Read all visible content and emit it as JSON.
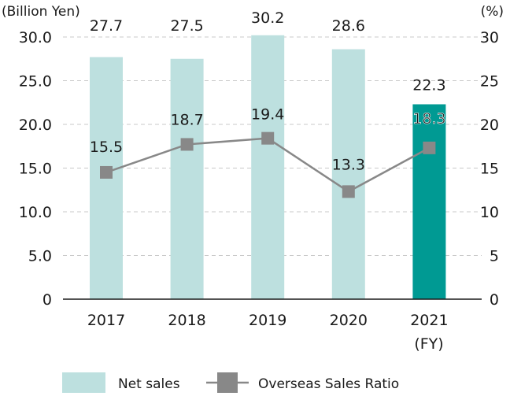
{
  "chart_data": {
    "type": "bar",
    "title": "",
    "categories": [
      "2017",
      "2018",
      "2019",
      "2020",
      "2021"
    ],
    "x_unit_label": "(FY)",
    "left_axis": {
      "label": "(Billion Yen)",
      "range": [
        0,
        30
      ],
      "ticks": [
        "0",
        "5.0",
        "10.0",
        "15.0",
        "20.0",
        "25.0",
        "30.0"
      ]
    },
    "right_axis": {
      "label": "(%)",
      "range": [
        0,
        30
      ],
      "ticks": [
        "0",
        "5",
        "10",
        "15",
        "20",
        "25",
        "30"
      ]
    },
    "grid": "horizontal dashed",
    "series": [
      {
        "name": "Net sales",
        "type": "bar",
        "axis": "left",
        "values": [
          27.7,
          27.5,
          30.2,
          28.6,
          22.3
        ],
        "labels": [
          "27.7",
          "27.5",
          "30.2",
          "28.6",
          "22.3"
        ],
        "color": "#bde0df",
        "highlight_color": "#009a93",
        "highlight_index": 4
      },
      {
        "name": "Overseas Sales Ratio",
        "type": "line",
        "axis": "right",
        "values": [
          15.5,
          18.7,
          19.4,
          13.3,
          18.3
        ],
        "labels": [
          "15.5",
          "18.7",
          "19.4",
          "13.3",
          "18.3"
        ],
        "color": "#888888"
      }
    ],
    "legend": {
      "position": "bottom",
      "entries": [
        "Net sales",
        "Overseas Sales Ratio"
      ]
    }
  }
}
